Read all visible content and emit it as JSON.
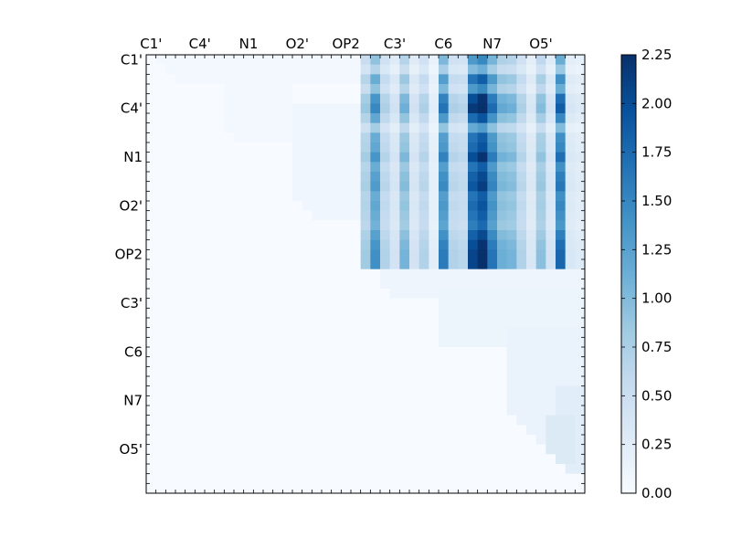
{
  "chart_data": {
    "type": "heatmap",
    "n": 45,
    "x_tick_labels": [
      "C1'",
      "C4'",
      "N1",
      "O2'",
      "OP2",
      "C3'",
      "C6",
      "N7",
      "O5'"
    ],
    "y_tick_labels": [
      "C1'",
      "C4'",
      "N1",
      "O2'",
      "OP2",
      "C3'",
      "C6",
      "N7",
      "O5'"
    ],
    "label_index_step": 5,
    "colorbar": {
      "min": 0.0,
      "max": 2.25,
      "ticks": [
        "0.00",
        "0.25",
        "0.50",
        "0.75",
        "1.00",
        "1.25",
        "1.50",
        "1.75",
        "2.00",
        "2.25"
      ]
    },
    "colormap": [
      "#f7fbff",
      "#deebf7",
      "#c6dbef",
      "#9ecae1",
      "#6baed6",
      "#4292c6",
      "#2171b5",
      "#08519c",
      "#08306b"
    ],
    "block": {
      "rows": [
        0,
        21
      ],
      "cols": [
        22,
        44
      ],
      "col_strength": [
        0.7,
        1.2,
        0.6,
        0.35,
        0.9,
        0.35,
        0.6,
        0.2,
        1.35,
        0.6,
        0.55,
        1.75,
        1.95,
        1.4,
        0.95,
        0.9,
        0.6,
        0.3,
        0.8,
        0.35,
        1.5,
        0.3,
        0.25
      ],
      "row_strength": [
        0.8,
        0.6,
        1.0,
        0.8,
        1.2,
        1.3,
        1.05,
        0.7,
        1.0,
        1.05,
        1.2,
        1.0,
        1.1,
        1.15,
        1.0,
        1.05,
        1.0,
        0.95,
        1.1,
        1.2,
        1.25,
        1.25
      ],
      "scale": 0.95
    },
    "weak_patches": [
      {
        "r0": 0,
        "r1": 2,
        "c0": 1,
        "c1": 21,
        "v": 0.05
      },
      {
        "r0": 0,
        "r1": 8,
        "c0": 8,
        "c1": 14,
        "v": 0.06
      },
      {
        "r0": 5,
        "r1": 16,
        "c0": 15,
        "c1": 21,
        "v": 0.08
      },
      {
        "r0": 22,
        "r1": 24,
        "c0": 24,
        "c1": 44,
        "v": 0.1
      },
      {
        "r0": 24,
        "r1": 29,
        "c0": 30,
        "c1": 44,
        "v": 0.12
      },
      {
        "r0": 28,
        "r1": 41,
        "c0": 37,
        "c1": 44,
        "v": 0.15
      },
      {
        "r0": 34,
        "r1": 42,
        "c0": 42,
        "c1": 44,
        "v": 0.25
      },
      {
        "r0": 37,
        "r1": 41,
        "c0": 41,
        "c1": 43,
        "v": 0.3
      }
    ]
  }
}
